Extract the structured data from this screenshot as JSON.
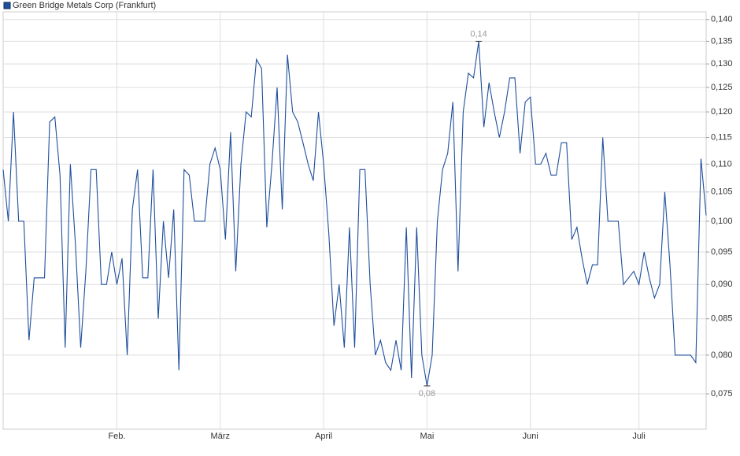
{
  "chart_data": {
    "type": "line",
    "log_y": true,
    "grid": true,
    "legend": "top-left",
    "ylim": [
      0.0707,
      0.1418
    ],
    "yticks": [
      {
        "value": 0.075,
        "label": "0,075"
      },
      {
        "value": 0.08,
        "label": "0,080"
      },
      {
        "value": 0.085,
        "label": "0,085"
      },
      {
        "value": 0.09,
        "label": "0,090"
      },
      {
        "value": 0.095,
        "label": "0,095"
      },
      {
        "value": 0.1,
        "label": "0,100"
      },
      {
        "value": 0.105,
        "label": "0,105"
      },
      {
        "value": 0.11,
        "label": "0,110"
      },
      {
        "value": 0.115,
        "label": "0,115"
      },
      {
        "value": 0.12,
        "label": "0,120"
      },
      {
        "value": 0.125,
        "label": "0,125"
      },
      {
        "value": 0.13,
        "label": "0,130"
      },
      {
        "value": 0.135,
        "label": "0,135"
      },
      {
        "value": 0.14,
        "label": "0,140"
      }
    ],
    "categories": [
      null,
      null,
      null,
      null,
      null,
      null,
      null,
      null,
      null,
      null,
      null,
      null,
      null,
      null,
      null,
      null,
      null,
      null,
      null,
      null,
      null,
      null,
      "Feb.",
      null,
      null,
      null,
      null,
      null,
      null,
      null,
      null,
      null,
      null,
      null,
      null,
      null,
      null,
      null,
      null,
      null,
      null,
      null,
      "März",
      null,
      null,
      null,
      null,
      null,
      null,
      null,
      null,
      null,
      null,
      null,
      null,
      null,
      null,
      null,
      null,
      null,
      null,
      null,
      "April",
      null,
      null,
      null,
      null,
      null,
      null,
      null,
      null,
      null,
      null,
      null,
      null,
      null,
      null,
      null,
      null,
      null,
      null,
      null,
      "Mai",
      null,
      null,
      null,
      null,
      null,
      null,
      null,
      null,
      null,
      null,
      null,
      null,
      null,
      null,
      null,
      null,
      null,
      null,
      null,
      "Juni",
      null,
      null,
      null,
      null,
      null,
      null,
      null,
      null,
      null,
      null,
      null,
      null,
      null,
      null,
      null,
      null,
      null,
      null,
      null,
      null,
      "Juli",
      null,
      null,
      null,
      null,
      null,
      null,
      null,
      null,
      null,
      null,
      null,
      null,
      null
    ],
    "series": [
      {
        "name": "Green Bridge Metals Corp (Frankfurt)",
        "color": "#1f4e9c",
        "values": [
          0.109,
          0.1,
          0.12,
          0.1,
          0.1,
          0.082,
          0.091,
          0.091,
          0.091,
          0.118,
          0.119,
          0.108,
          0.081,
          0.11,
          0.096,
          0.081,
          0.092,
          0.109,
          0.109,
          0.09,
          0.09,
          0.095,
          0.09,
          0.094,
          0.08,
          0.102,
          0.109,
          0.091,
          0.091,
          0.109,
          0.085,
          0.1,
          0.091,
          0.102,
          0.078,
          0.109,
          0.108,
          0.1,
          0.1,
          0.1,
          0.11,
          0.113,
          0.109,
          0.097,
          0.116,
          0.092,
          0.11,
          0.12,
          0.119,
          0.131,
          0.129,
          0.099,
          0.11,
          0.125,
          0.102,
          0.132,
          0.12,
          0.118,
          0.114,
          0.11,
          0.107,
          0.12,
          0.11,
          0.098,
          0.084,
          0.09,
          0.081,
          0.099,
          0.081,
          0.109,
          0.109,
          0.09,
          0.08,
          0.082,
          0.079,
          0.078,
          0.082,
          0.078,
          0.099,
          0.077,
          0.099,
          0.08,
          0.076,
          0.08,
          0.1,
          0.109,
          0.112,
          0.122,
          0.092,
          0.12,
          0.128,
          0.127,
          0.135,
          0.117,
          0.126,
          0.12,
          0.115,
          0.12,
          0.127,
          0.127,
          0.112,
          0.122,
          0.123,
          0.11,
          0.11,
          0.112,
          0.108,
          0.108,
          0.114,
          0.114,
          0.097,
          0.099,
          0.094,
          0.09,
          0.093,
          0.093,
          0.115,
          0.1,
          0.1,
          0.1,
          0.09,
          0.091,
          0.092,
          0.09,
          0.095,
          0.091,
          0.088,
          0.09,
          0.105,
          0.093,
          0.08,
          0.08,
          0.08,
          0.08,
          0.079,
          0.111,
          0.101
        ],
        "value_labels": [
          null,
          null,
          null,
          null,
          null,
          null,
          null,
          null,
          null,
          null,
          null,
          null,
          null,
          null,
          null,
          null,
          null,
          null,
          null,
          null,
          null,
          null,
          null,
          null,
          null,
          null,
          null,
          null,
          null,
          null,
          null,
          null,
          null,
          null,
          null,
          null,
          null,
          null,
          null,
          null,
          null,
          null,
          null,
          null,
          null,
          null,
          null,
          null,
          null,
          null,
          null,
          null,
          null,
          null,
          null,
          null,
          null,
          null,
          null,
          null,
          null,
          null,
          null,
          null,
          null,
          null,
          null,
          null,
          null,
          null,
          null,
          null,
          null,
          null,
          null,
          null,
          null,
          null,
          null,
          null,
          null,
          null,
          "0,08",
          null,
          null,
          null,
          null,
          null,
          null,
          null,
          null,
          null,
          "0,14",
          null,
          null,
          null,
          null,
          null,
          null,
          null,
          null,
          null,
          null,
          null,
          null,
          null,
          null,
          null,
          null,
          null,
          null,
          null,
          null,
          null,
          null,
          null,
          null,
          null,
          null,
          null,
          null,
          null,
          null,
          null,
          null,
          null,
          null,
          null,
          null,
          null,
          null,
          null,
          null,
          null,
          null,
          null,
          null
        ]
      }
    ]
  }
}
